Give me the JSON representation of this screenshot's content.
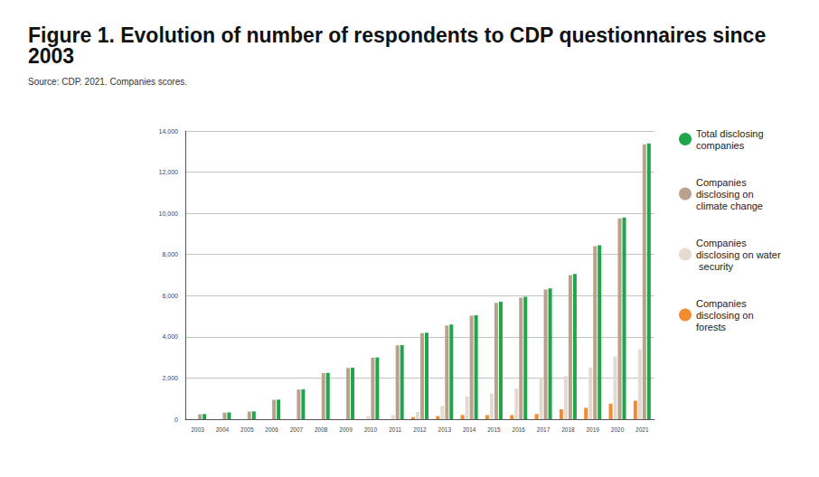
{
  "chart_data": {
    "type": "bar",
    "title": "Figure 1. Evolution of number of respondents to CDP questionnaires since 2003",
    "subtitle": "Source: CDP. 2021. Companies scores.",
    "categories": [
      "2003",
      "2004",
      "2005",
      "2006",
      "2007",
      "2008",
      "2009",
      "2010",
      "2011",
      "2012",
      "2013",
      "2014",
      "2015",
      "2016",
      "2017",
      "2018",
      "2019",
      "2020",
      "2021"
    ],
    "series": [
      {
        "name": "Total disclosing companies",
        "color": "#1fa64a",
        "values": [
          250,
          330,
          380,
          950,
          1450,
          2250,
          2500,
          3000,
          3600,
          4200,
          4600,
          5050,
          5700,
          5950,
          6350,
          7050,
          8450,
          9800,
          13400
        ]
      },
      {
        "name": "Companies disclosing on climate change",
        "color": "#b9a28d",
        "values": [
          240,
          320,
          370,
          940,
          1440,
          2240,
          2490,
          2990,
          3590,
          4180,
          4550,
          5030,
          5650,
          5900,
          6300,
          7000,
          8400,
          9750,
          13350
        ]
      },
      {
        "name": "Companies disclosing on water security",
        "color": "#e3dbcf",
        "values": [
          null,
          null,
          null,
          null,
          null,
          null,
          null,
          150,
          200,
          350,
          650,
          1100,
          1250,
          1500,
          2000,
          2100,
          2500,
          3050,
          3400
        ]
      },
      {
        "name": "Companies disclosing on forests",
        "color": "#f28a30",
        "values": [
          null,
          null,
          null,
          null,
          null,
          null,
          null,
          null,
          null,
          100,
          150,
          200,
          200,
          200,
          250,
          480,
          550,
          750,
          900
        ]
      }
    ],
    "ylim": [
      0,
      14000
    ],
    "yticks": [
      0,
      {
        "value": 2000,
        "label": "2,000"
      },
      {
        "value": 4000,
        "label": "4,000"
      },
      {
        "value": 6000,
        "label": "6,000"
      },
      {
        "value": 8000,
        "label": "8,000"
      },
      {
        "value": 10000,
        "label": "10,000"
      },
      {
        "value": 12000,
        "label": "12,000"
      },
      {
        "value": 14000,
        "label": "14,000"
      }
    ],
    "grid": true,
    "legend": "right"
  }
}
